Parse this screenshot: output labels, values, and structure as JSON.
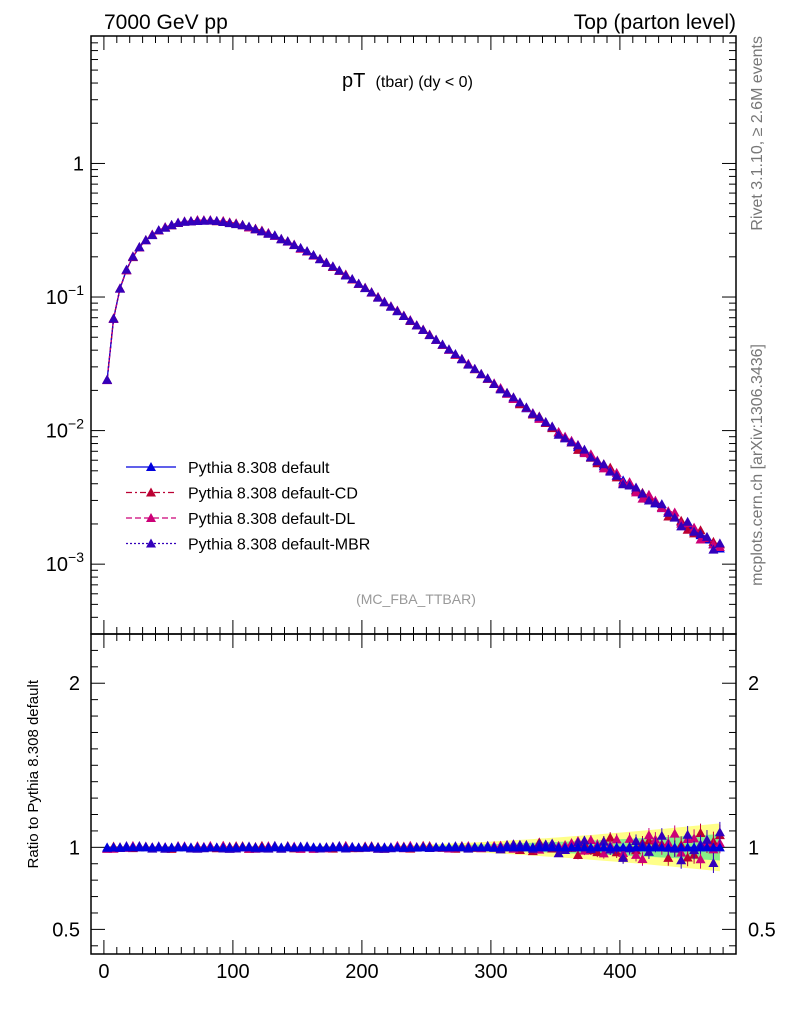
{
  "header": {
    "left": "7000 GeV pp",
    "right": "Top (parton level)"
  },
  "side_labels": {
    "rivet": "Rivet 3.1.10, ≥ 2.6M events",
    "mcplots": "mcplots.cern.ch [arXiv:1306.3436]"
  },
  "analysis_tag": "(MC_FBA_TTBAR)",
  "colors": {
    "default": "#0000dd",
    "cd": "#bb0033",
    "dl": "#cc0077",
    "mbr": "#3300bb",
    "band_yellow": "#ffff88",
    "band_green": "#88ee88"
  },
  "chart_data": [
    {
      "type": "line",
      "title_main": "pT",
      "title_sub": "(tbar) (dy < 0)",
      "yscale": "log",
      "xlim": [
        -10,
        490
      ],
      "ylim": [
        0.0003,
        9
      ],
      "y_ticks": [
        {
          "v": 1,
          "base": "1",
          "exp": ""
        },
        {
          "v": 0.1,
          "base": "10",
          "exp": "−1"
        },
        {
          "v": 0.01,
          "base": "10",
          "exp": "−2"
        },
        {
          "v": 0.001,
          "base": "10",
          "exp": "−3"
        }
      ],
      "legend": [
        {
          "label": "Pythia 8.308 default",
          "key": "default",
          "dash": ""
        },
        {
          "label": "Pythia 8.308 default-CD",
          "key": "cd",
          "dash": "6,3,2,3"
        },
        {
          "label": "Pythia 8.308 default-DL",
          "key": "dl",
          "dash": "6,3"
        },
        {
          "label": "Pythia 8.308 default-MBR",
          "key": "mbr",
          "dash": "2,2"
        }
      ],
      "legend_position": "lower-left",
      "x": [
        2.5,
        7.5,
        12.5,
        17.5,
        22.5,
        27.5,
        32.5,
        37.5,
        42.5,
        47.5,
        52.5,
        57.5,
        62.5,
        67.5,
        72.5,
        77.5,
        82.5,
        87.5,
        92.5,
        97.5,
        102.5,
        107.5,
        112.5,
        117.5,
        122.5,
        127.5,
        132.5,
        137.5,
        142.5,
        147.5,
        152.5,
        157.5,
        162.5,
        167.5,
        172.5,
        177.5,
        182.5,
        187.5,
        192.5,
        197.5,
        202.5,
        207.5,
        212.5,
        217.5,
        222.5,
        227.5,
        232.5,
        237.5,
        242.5,
        247.5,
        252.5,
        257.5,
        262.5,
        267.5,
        272.5,
        277.5,
        282.5,
        287.5,
        292.5,
        297.5,
        302.5,
        307.5,
        312.5,
        317.5,
        322.5,
        327.5,
        332.5,
        337.5,
        342.5,
        347.5,
        352.5,
        357.5,
        362.5,
        367.5,
        372.5,
        377.5,
        382.5,
        387.5,
        392.5,
        397.5,
        402.5,
        407.5,
        412.5,
        417.5,
        422.5,
        427.5,
        432.5,
        437.5,
        442.5,
        447.5,
        452.5,
        457.5,
        462.5,
        467.5,
        472.5,
        477.5
      ],
      "series_default": [
        0.0241,
        0.069,
        0.116,
        0.159,
        0.2,
        0.235,
        0.266,
        0.293,
        0.315,
        0.333,
        0.347,
        0.358,
        0.366,
        0.371,
        0.374,
        0.375,
        0.374,
        0.371,
        0.367,
        0.361,
        0.354,
        0.345,
        0.335,
        0.324,
        0.312,
        0.3,
        0.287,
        0.273,
        0.26,
        0.246,
        0.232,
        0.219,
        0.206,
        0.193,
        0.181,
        0.169,
        0.157,
        0.146,
        0.136,
        0.126,
        0.117,
        0.108,
        0.0998,
        0.0922,
        0.0851,
        0.0785,
        0.0724,
        0.0667,
        0.0614,
        0.0566,
        0.052,
        0.0479,
        0.044,
        0.0405,
        0.0372,
        0.0342,
        0.0314,
        0.0289,
        0.0265,
        0.0244,
        0.0224,
        0.0206,
        0.0189,
        0.0174,
        0.016,
        0.0147,
        0.0135,
        0.0124,
        0.0114,
        0.0105,
        0.00966,
        0.00888,
        0.00817,
        0.00752,
        0.00692,
        0.00637,
        0.00587,
        0.00541,
        0.00499,
        0.0046,
        0.00424,
        0.00391,
        0.00361,
        0.00333,
        0.00308,
        0.00285,
        0.00263,
        0.00243,
        0.00225,
        0.00208,
        0.00193,
        0.00178,
        0.00165,
        0.00153,
        0.00142,
        0.00131
      ]
    },
    {
      "type": "scatter",
      "ylabel": "Ratio to Pythia 8.308 default",
      "xlim": [
        -10,
        490
      ],
      "ylim": [
        0.35,
        2.3
      ],
      "x_ticks": [
        0,
        100,
        200,
        300,
        400
      ],
      "y_ticks": [
        {
          "v": 0.5,
          "label": "0.5"
        },
        {
          "v": 1,
          "label": "1"
        },
        {
          "v": 2,
          "label": "2"
        }
      ],
      "reference_value": 1
    }
  ]
}
